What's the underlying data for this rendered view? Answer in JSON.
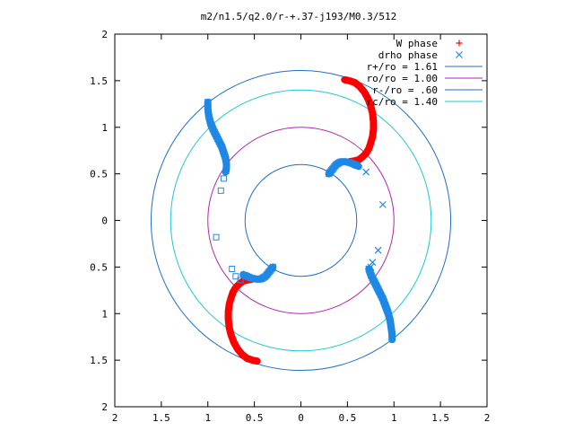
{
  "chart_data": {
    "type": "scatter",
    "title": "m2/n1.5/q2.0/r-+.37-j193/M0.3/512",
    "xlim": [
      -2,
      2
    ],
    "ylim": [
      -2,
      2
    ],
    "x_tick_labels": [
      "2",
      "1.5",
      "1",
      "0.5",
      "0",
      "0.5",
      "1",
      "1.5",
      "2"
    ],
    "y_tick_labels": [
      "2",
      "1.5",
      "1",
      "0.5",
      "0",
      "0.5",
      "1",
      "1.5",
      "2"
    ],
    "grid": false,
    "legend_position": "top-right",
    "circles": [
      {
        "name": "r+/ro = 1.61",
        "r": 1.61,
        "color": "#1f6fc4"
      },
      {
        "name": "ro/ro = 1.00",
        "r": 1.0,
        "color": "#b026b0"
      },
      {
        "name": "r-/ro = .60",
        "r": 0.6,
        "color": "#1f6fc4"
      },
      {
        "name": "rc/ro = 1.40",
        "r": 1.4,
        "color": "#17c9d6"
      }
    ],
    "series": [
      {
        "name": "W phase",
        "marker": "+",
        "color": "#ff0000",
        "arms": [
          {
            "x": [
              0.47,
              0.52,
              0.58,
              0.63,
              0.68,
              0.72,
              0.75,
              0.77,
              0.78,
              0.78,
              0.77,
              0.75,
              0.73,
              0.7,
              0.66,
              0.62,
              0.58,
              0.52
            ],
            "y": [
              1.51,
              1.5,
              1.48,
              1.44,
              1.38,
              1.31,
              1.23,
              1.15,
              1.06,
              0.98,
              0.9,
              0.83,
              0.77,
              0.72,
              0.68,
              0.65,
              0.64,
              0.63
            ]
          },
          {
            "x": [
              -0.47,
              -0.52,
              -0.58,
              -0.63,
              -0.68,
              -0.72,
              -0.75,
              -0.77,
              -0.78,
              -0.78,
              -0.77,
              -0.75,
              -0.73,
              -0.7,
              -0.66,
              -0.62,
              -0.58,
              -0.52
            ],
            "y": [
              -1.51,
              -1.5,
              -1.48,
              -1.44,
              -1.38,
              -1.31,
              -1.23,
              -1.15,
              -1.06,
              -0.98,
              -0.9,
              -0.83,
              -0.77,
              -0.72,
              -0.68,
              -0.65,
              -0.64,
              -0.63
            ]
          }
        ],
        "scattered": []
      },
      {
        "name": "drho phase",
        "marker": "x",
        "color": "#1e88e5",
        "arms": [
          {
            "x": [
              -1.0,
              -1.0,
              -0.99,
              -0.97,
              -0.94,
              -0.91,
              -0.88,
              -0.85,
              -0.83,
              -0.81,
              -0.8,
              -0.8,
              -0.81
            ],
            "y": [
              1.27,
              1.2,
              1.12,
              1.04,
              0.97,
              0.91,
              0.85,
              0.79,
              0.73,
              0.67,
              0.61,
              0.56,
              0.52
            ]
          },
          {
            "x": [
              0.3,
              0.34,
              0.38,
              0.43,
              0.48,
              0.53,
              0.58,
              0.62
            ],
            "y": [
              0.5,
              0.55,
              0.6,
              0.63,
              0.63,
              0.62,
              0.6,
              0.58
            ]
          },
          {
            "x": [
              -0.3,
              -0.34,
              -0.38,
              -0.43,
              -0.48,
              -0.53,
              -0.58,
              -0.62
            ],
            "y": [
              -0.5,
              -0.55,
              -0.6,
              -0.63,
              -0.63,
              -0.62,
              -0.6,
              -0.58
            ]
          },
          {
            "x": [
              0.73,
              0.76,
              0.8,
              0.84,
              0.88,
              0.91,
              0.94,
              0.96,
              0.97,
              0.98,
              0.98
            ],
            "y": [
              -0.52,
              -0.6,
              -0.68,
              -0.76,
              -0.84,
              -0.92,
              -1.0,
              -1.08,
              -1.15,
              -1.22,
              -1.28
            ]
          }
        ],
        "scattered": [
          {
            "x": -0.83,
            "y": 0.45
          },
          {
            "x": -0.86,
            "y": 0.32
          },
          {
            "x": -0.91,
            "y": -0.18
          },
          {
            "x": -0.74,
            "y": -0.52
          },
          {
            "x": -0.7,
            "y": -0.6
          },
          {
            "x": -0.65,
            "y": -0.64
          },
          {
            "x": 0.7,
            "y": 0.52
          },
          {
            "x": 0.88,
            "y": 0.17
          },
          {
            "x": 0.83,
            "y": -0.32
          },
          {
            "x": 0.77,
            "y": -0.45
          },
          {
            "x": 0.75,
            "y": -0.5
          }
        ]
      }
    ]
  }
}
